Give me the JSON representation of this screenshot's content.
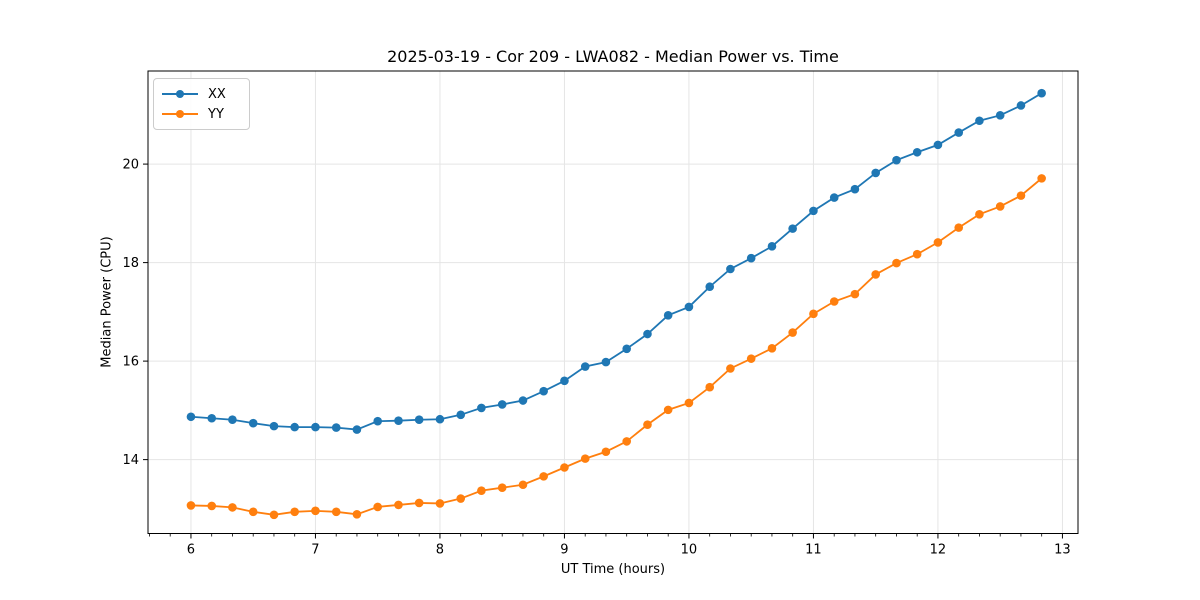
{
  "chart_data": {
    "type": "line",
    "title": "2025-03-19 - Cor 209 - LWA082 - Median Power vs. Time",
    "xlabel": "UT Time (hours)",
    "ylabel": "Median Power (CPU)",
    "xlim": [
      5.655,
      13.125
    ],
    "ylim": [
      12.5,
      21.89
    ],
    "xticks": [
      6,
      7,
      8,
      9,
      10,
      11,
      12,
      13
    ],
    "yticks": [
      14,
      16,
      18,
      20
    ],
    "x_minor_step": 0.1666667,
    "grid": "major",
    "grid_color": "#e5e5e5",
    "spine_color": "#000000",
    "legend_position": "upper-left",
    "x": [
      6.0,
      6.167,
      6.333,
      6.5,
      6.667,
      6.833,
      7.0,
      7.167,
      7.333,
      7.5,
      7.667,
      7.833,
      8.0,
      8.167,
      8.333,
      8.5,
      8.667,
      8.833,
      9.0,
      9.167,
      9.333,
      9.5,
      9.667,
      9.833,
      10.0,
      10.167,
      10.333,
      10.5,
      10.667,
      10.833,
      11.0,
      11.167,
      11.333,
      11.5,
      11.667,
      11.833,
      12.0,
      12.167,
      12.333,
      12.5,
      12.667,
      12.833
    ],
    "series": [
      {
        "name": "XX",
        "color": "#1f77b4",
        "values": [
          14.87,
          14.84,
          14.81,
          14.74,
          14.68,
          14.66,
          14.66,
          14.65,
          14.61,
          14.78,
          14.79,
          14.81,
          14.82,
          14.91,
          15.05,
          15.12,
          15.2,
          15.39,
          15.6,
          15.89,
          15.98,
          16.25,
          16.55,
          16.93,
          17.1,
          17.51,
          17.87,
          18.09,
          18.33,
          18.69,
          19.05,
          19.32,
          19.49,
          19.82,
          20.08,
          20.24,
          20.39,
          20.64,
          20.88,
          20.99,
          21.19,
          21.44
        ]
      },
      {
        "name": "YY",
        "color": "#ff7f0e",
        "values": [
          13.07,
          13.06,
          13.03,
          12.94,
          12.88,
          12.94,
          12.96,
          12.94,
          12.89,
          13.04,
          13.08,
          13.12,
          13.11,
          13.21,
          13.37,
          13.43,
          13.49,
          13.66,
          13.84,
          14.02,
          14.16,
          14.37,
          14.71,
          15.01,
          15.15,
          15.47,
          15.85,
          16.05,
          16.26,
          16.58,
          16.96,
          17.21,
          17.36,
          17.76,
          17.99,
          18.17,
          18.41,
          18.71,
          18.98,
          19.14,
          19.36,
          19.71
        ]
      }
    ]
  }
}
